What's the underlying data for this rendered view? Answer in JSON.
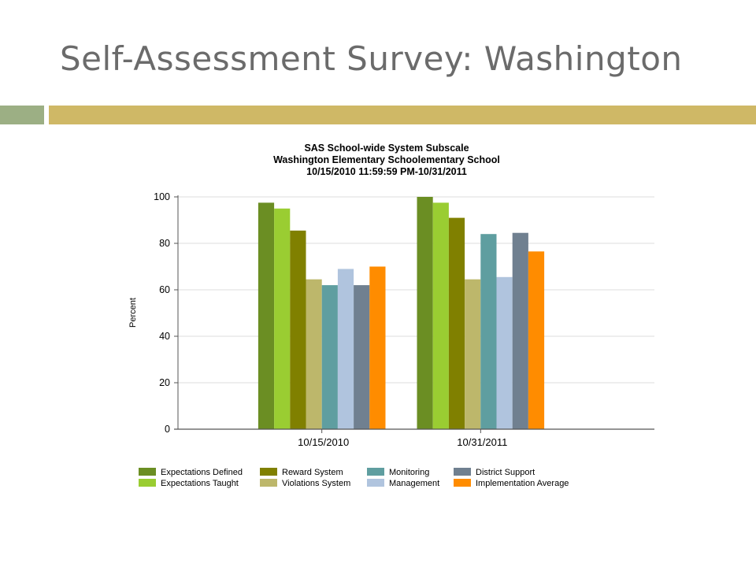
{
  "slide": {
    "title": "Self-Assessment Survey: Washington",
    "accent_left": "#9caf84",
    "accent_right": "#cfb866"
  },
  "chart_data": {
    "type": "bar",
    "title_lines": [
      "SAS School-wide System Subscale",
      "Washington Elementary Schoolementary School",
      "10/15/2010 11:59:59 PM-10/31/2011"
    ],
    "ylabel": "Percent",
    "xlabel": "",
    "ylim": [
      0,
      100
    ],
    "yticks": [
      0,
      20,
      40,
      60,
      80,
      100
    ],
    "grid": true,
    "legend_position": "bottom",
    "categories": [
      "10/15/2010",
      "10/31/2011"
    ],
    "series": [
      {
        "name": "Expectations Defined",
        "color": "#6b8e23",
        "values": [
          97.5,
          100
        ]
      },
      {
        "name": "Expectations Taught",
        "color": "#9acd32",
        "values": [
          95,
          97.5
        ]
      },
      {
        "name": "Reward System",
        "color": "#808000",
        "values": [
          85.5,
          91
        ]
      },
      {
        "name": "Violations System",
        "color": "#bdb76b",
        "values": [
          64.5,
          64.5
        ]
      },
      {
        "name": "Monitoring",
        "color": "#5f9ea0",
        "values": [
          62,
          84
        ]
      },
      {
        "name": "Management",
        "color": "#b0c4de",
        "values": [
          69,
          65.5
        ]
      },
      {
        "name": "District Support",
        "color": "#708090",
        "values": [
          62,
          84.5
        ]
      },
      {
        "name": "Implementation Average",
        "color": "#ff8c00",
        "values": [
          70,
          76.5
        ]
      }
    ]
  }
}
